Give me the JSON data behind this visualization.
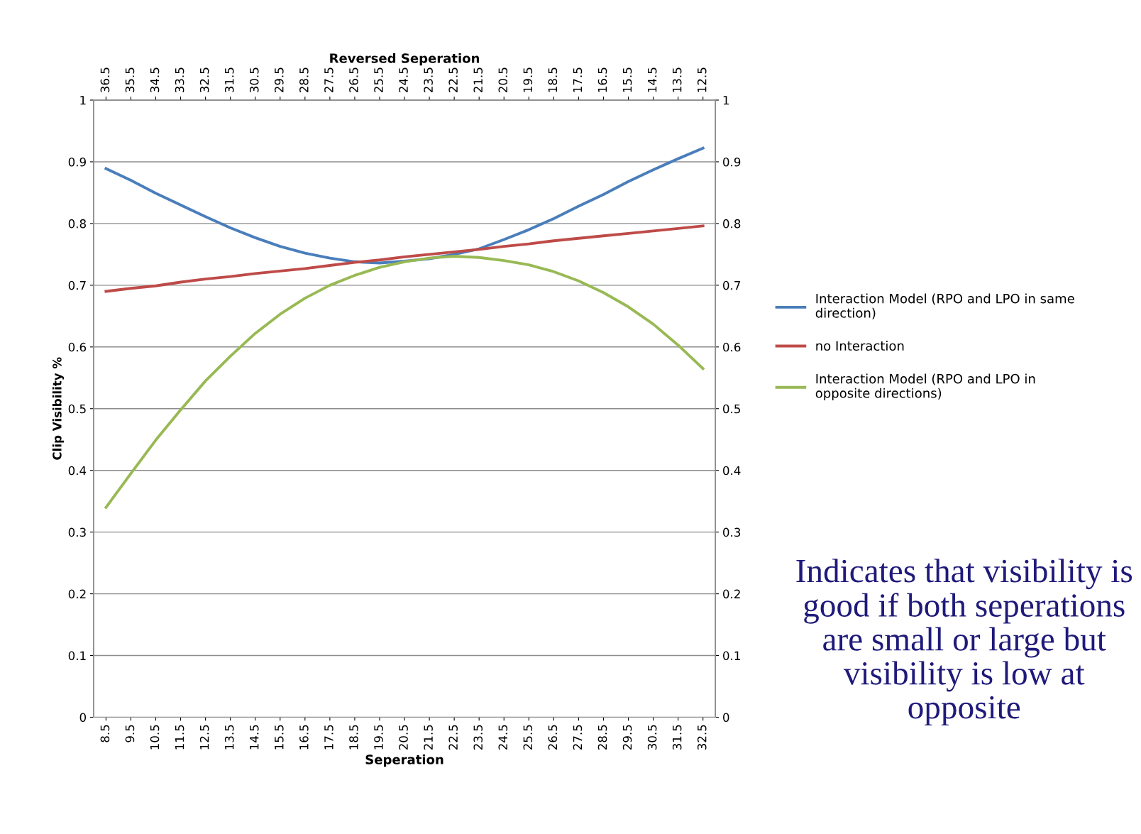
{
  "chart_data": {
    "type": "line",
    "xlabel": "Seperation",
    "x2label": "Reversed Seperation",
    "ylabel": "Clip Visibility %",
    "x": [
      8.5,
      9.5,
      10.5,
      11.5,
      12.5,
      13.5,
      14.5,
      15.5,
      16.5,
      17.5,
      18.5,
      19.5,
      20.5,
      21.5,
      22.5,
      23.5,
      24.5,
      25.5,
      26.5,
      27.5,
      28.5,
      29.5,
      30.5,
      31.5,
      32.5
    ],
    "xlim": [
      8,
      33
    ],
    "xticks": [
      8.5,
      9.5,
      10.5,
      11.5,
      12.5,
      13.5,
      14.5,
      15.5,
      16.5,
      17.5,
      18.5,
      19.5,
      20.5,
      21.5,
      22.5,
      23.5,
      24.5,
      25.5,
      26.5,
      27.5,
      28.5,
      29.5,
      30.5,
      31.5,
      32.5
    ],
    "x2lim": [
      37,
      12
    ],
    "x2ticks": [
      36.5,
      35.5,
      34.5,
      33.5,
      32.5,
      31.5,
      30.5,
      29.5,
      28.5,
      27.5,
      26.5,
      25.5,
      24.5,
      23.5,
      22.5,
      21.5,
      20.5,
      19.5,
      18.5,
      17.5,
      16.5,
      15.5,
      14.5,
      13.5,
      12.5
    ],
    "ylim": [
      0,
      1
    ],
    "yticks": [
      0,
      0.1,
      0.2,
      0.3,
      0.4,
      0.5,
      0.6,
      0.7,
      0.8,
      0.9,
      1
    ],
    "y2lim": [
      0,
      1
    ],
    "y2ticks": [
      0,
      0.1,
      0.2,
      0.3,
      0.4,
      0.5,
      0.6,
      0.7,
      0.8,
      0.9,
      1
    ],
    "grid": "y",
    "legend": "right",
    "marker": "none",
    "line_style": "solid",
    "series": [
      {
        "name": "Interaction Model (RPO and LPO in same direction)",
        "color": "#4a7ebb",
        "values": [
          0.889,
          0.87,
          0.849,
          0.83,
          0.811,
          0.793,
          0.777,
          0.763,
          0.752,
          0.744,
          0.738,
          0.736,
          0.739,
          0.743,
          0.75,
          0.759,
          0.774,
          0.79,
          0.808,
          0.828,
          0.847,
          0.868,
          0.887,
          0.905,
          0.922
        ]
      },
      {
        "name": "no Interaction",
        "color": "#be4b48",
        "values": [
          0.69,
          0.695,
          0.699,
          0.705,
          0.71,
          0.714,
          0.719,
          0.723,
          0.727,
          0.732,
          0.737,
          0.741,
          0.746,
          0.75,
          0.754,
          0.758,
          0.763,
          0.767,
          0.772,
          0.776,
          0.78,
          0.784,
          0.788,
          0.792,
          0.796
        ]
      },
      {
        "name": "Interaction Model (RPO and LPO in opposite directions)",
        "color": "#98b954",
        "values": [
          0.34,
          0.395,
          0.449,
          0.498,
          0.545,
          0.585,
          0.622,
          0.653,
          0.679,
          0.7,
          0.716,
          0.729,
          0.738,
          0.744,
          0.747,
          0.745,
          0.74,
          0.733,
          0.722,
          0.707,
          0.688,
          0.665,
          0.637,
          0.603,
          0.565
        ]
      }
    ],
    "annotations": [
      "Indicates that visibility is good if both seperations are small or large but visibility is low at opposite"
    ]
  }
}
